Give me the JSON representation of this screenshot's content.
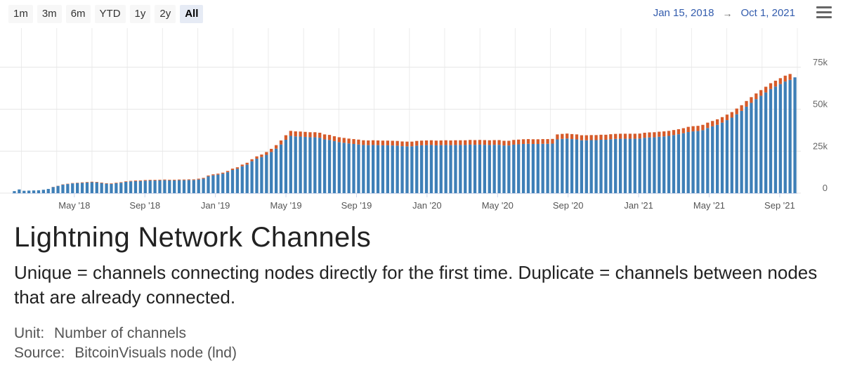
{
  "range_selector": {
    "buttons": [
      "1m",
      "3m",
      "6m",
      "YTD",
      "1y",
      "2y",
      "All"
    ],
    "active": "All"
  },
  "date_range": {
    "from": "Jan 15, 2018",
    "arrow": "→",
    "to": "Oct 1, 2021"
  },
  "menu_icon": "hamburger-menu-icon",
  "chart_data": {
    "type": "bar",
    "stacked": true,
    "title": "Lightning Network Channels",
    "subtitle": "Unique = channels connecting nodes directly for the first time. Duplicate = channels between nodes that are already connected.",
    "unit_label": "Unit:",
    "unit": "Number of channels",
    "source_label": "Source:",
    "source": "BitcoinVisuals node (lnd)",
    "x_start": "2018-01-15",
    "x_end": "2021-10-01",
    "x_ticks": [
      "May '18",
      "Sep '18",
      "Jan '19",
      "May '19",
      "Sep '19",
      "Jan '20",
      "May '20",
      "Sep '20",
      "Jan '21",
      "May '21",
      "Sep '21"
    ],
    "y_ticks": [
      "0",
      "25k",
      "50k",
      "75k"
    ],
    "ylim": [
      0,
      95000
    ],
    "y_axis_side": "right",
    "grid": true,
    "legend": false,
    "colors": {
      "unique": "#3e7fb7",
      "duplicate": "#d65b2a"
    },
    "series": [
      {
        "key": "unique",
        "values": [
          1200,
          2200,
          1400,
          1500,
          1600,
          1700,
          2000,
          2500,
          3600,
          4300,
          5000,
          5400,
          5800,
          6000,
          6100,
          6300,
          6500,
          6400,
          6000,
          5600,
          5500,
          5900,
          6200,
          6700,
          7000,
          7100,
          7200,
          7400,
          7500,
          7500,
          7600,
          7700,
          7600,
          7600,
          7700,
          7700,
          7800,
          7800,
          8100,
          8600,
          10000,
          10600,
          11000,
          11600,
          12500,
          13800,
          14500,
          16000,
          17000,
          19000,
          20500,
          21500,
          22800,
          24500,
          26500,
          29000,
          31800,
          34100,
          33800,
          33700,
          33500,
          33300,
          33300,
          33000,
          32000,
          31700,
          31000,
          30400,
          30000,
          29600,
          29300,
          29000,
          28700,
          28600,
          28700,
          28600,
          28500,
          28500,
          28400,
          28300,
          28000,
          27900,
          27900,
          28300,
          28500,
          28600,
          28700,
          28500,
          28600,
          28700,
          28600,
          28700,
          28700,
          28700,
          28900,
          28800,
          28900,
          28800,
          28700,
          28800,
          28800,
          28400,
          28400,
          28900,
          29100,
          29300,
          29400,
          29300,
          29300,
          29400,
          29400,
          29500,
          32000,
          32300,
          32500,
          32200,
          32000,
          31500,
          31500,
          31600,
          31600,
          31800,
          31800,
          32100,
          32300,
          32400,
          32400,
          32400,
          32400,
          32500,
          33000,
          33200,
          33300,
          33600,
          33800,
          34100,
          34600,
          35100,
          35700,
          36400,
          36800,
          37000,
          37500,
          38800,
          39800,
          40700,
          42000,
          43500,
          45000,
          47000,
          49000,
          51500,
          53800,
          56000,
          58000,
          60000,
          62000,
          63500,
          65000,
          66500,
          67500,
          69000
        ],
        "name": ""
      },
      {
        "key": "duplicate",
        "values": [
          0,
          0,
          0,
          0,
          0,
          0,
          0,
          0,
          100,
          100,
          200,
          200,
          200,
          200,
          300,
          300,
          300,
          300,
          300,
          300,
          300,
          300,
          300,
          300,
          300,
          400,
          400,
          400,
          400,
          400,
          400,
          400,
          400,
          400,
          400,
          400,
          400,
          400,
          500,
          500,
          500,
          600,
          600,
          600,
          700,
          800,
          900,
          1000,
          1100,
          1200,
          1400,
          1500,
          1700,
          1900,
          2100,
          2400,
          2700,
          3000,
          3000,
          3000,
          3000,
          3000,
          3000,
          3000,
          3000,
          3000,
          2900,
          2900,
          2900,
          2900,
          2900,
          2900,
          2800,
          2800,
          2800,
          2800,
          2800,
          2800,
          2800,
          2800,
          2800,
          2800,
          2800,
          2800,
          2800,
          2800,
          2800,
          2800,
          2800,
          2800,
          2800,
          2800,
          2800,
          2800,
          2800,
          2800,
          2800,
          2800,
          2800,
          2800,
          2800,
          2800,
          2800,
          2800,
          2800,
          2800,
          2800,
          2800,
          2800,
          2800,
          2800,
          2800,
          3000,
          3000,
          3000,
          3000,
          3000,
          3000,
          3000,
          3000,
          3000,
          3000,
          3000,
          3000,
          3000,
          3000,
          3000,
          3000,
          3000,
          3000,
          3000,
          3000,
          3000,
          3000,
          3000,
          3000,
          3000,
          3000,
          3000,
          3100,
          3100,
          3100,
          3200,
          3200,
          3200,
          3300,
          3300,
          3300,
          3300,
          3400,
          3400,
          3400,
          3400,
          3400,
          3400,
          3400,
          3500,
          3500,
          3500,
          3500,
          3500
        ],
        "name": ""
      }
    ]
  }
}
